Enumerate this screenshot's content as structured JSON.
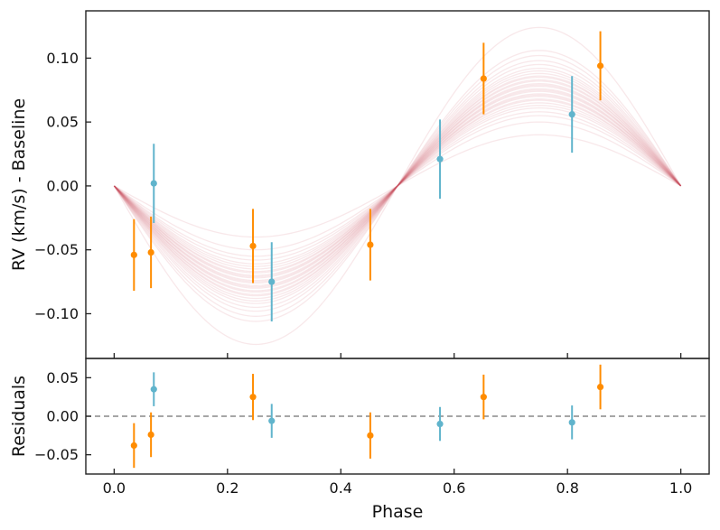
{
  "chart_data": [
    {
      "type": "scatter",
      "panel": "top",
      "ylabel": "RV (km/s) - Baseline",
      "xlim": [
        -0.05,
        1.05
      ],
      "ylim": [
        -0.135,
        0.137
      ],
      "yticks": [
        -0.1,
        -0.05,
        0.0,
        0.05,
        0.1
      ],
      "ytick_labels": [
        "−0.10",
        "−0.05",
        "0.00",
        "0.05",
        "0.10"
      ],
      "model_curves": {
        "form": "-K*sin(2*pi*phase)",
        "color": "#c8505a",
        "amplitudes": [
          0.04,
          0.05,
          0.055,
          0.058,
          0.061,
          0.063,
          0.065,
          0.067,
          0.068,
          0.07,
          0.071,
          0.072,
          0.074,
          0.075,
          0.076,
          0.078,
          0.079,
          0.08,
          0.082,
          0.083,
          0.085,
          0.086,
          0.088,
          0.09,
          0.092,
          0.095,
          0.098,
          0.102,
          0.106,
          0.124
        ]
      },
      "series": [
        {
          "color": "#ff8c00",
          "points": [
            {
              "x": 0.035,
              "y": -0.054,
              "err": 0.028
            },
            {
              "x": 0.065,
              "y": -0.052,
              "err": 0.028
            },
            {
              "x": 0.245,
              "y": -0.047,
              "err": 0.029
            },
            {
              "x": 0.452,
              "y": -0.046,
              "err": 0.028
            },
            {
              "x": 0.652,
              "y": 0.084,
              "err": 0.028
            },
            {
              "x": 0.858,
              "y": 0.094,
              "err": 0.027
            }
          ]
        },
        {
          "color": "#60b4cc",
          "points": [
            {
              "x": 0.07,
              "y": 0.002,
              "err": 0.031
            },
            {
              "x": 0.278,
              "y": -0.075,
              "err": 0.031
            },
            {
              "x": 0.575,
              "y": 0.021,
              "err": 0.031
            },
            {
              "x": 0.808,
              "y": 0.056,
              "err": 0.03
            }
          ]
        }
      ]
    },
    {
      "type": "scatter",
      "panel": "bottom",
      "xlabel": "Phase",
      "ylabel": "Residuals",
      "xlim": [
        -0.05,
        1.05
      ],
      "ylim": [
        -0.075,
        0.075
      ],
      "xticks": [
        0.0,
        0.2,
        0.4,
        0.6,
        0.8,
        1.0
      ],
      "xtick_labels": [
        "0.0",
        "0.2",
        "0.4",
        "0.6",
        "0.8",
        "1.0"
      ],
      "yticks": [
        -0.05,
        0.0,
        0.05
      ],
      "ytick_labels": [
        "−0.05",
        "0.00",
        "0.05"
      ],
      "zero_line": {
        "y": 0,
        "style": "dashed",
        "color": "#888888"
      },
      "series": [
        {
          "color": "#ff8c00",
          "points": [
            {
              "x": 0.035,
              "y": -0.038,
              "err": 0.029
            },
            {
              "x": 0.065,
              "y": -0.024,
              "err": 0.029
            },
            {
              "x": 0.245,
              "y": 0.025,
              "err": 0.03
            },
            {
              "x": 0.452,
              "y": -0.025,
              "err": 0.03
            },
            {
              "x": 0.652,
              "y": 0.025,
              "err": 0.029
            },
            {
              "x": 0.858,
              "y": 0.038,
              "err": 0.029
            }
          ]
        },
        {
          "color": "#60b4cc",
          "points": [
            {
              "x": 0.07,
              "y": 0.035,
              "err": 0.022
            },
            {
              "x": 0.278,
              "y": -0.006,
              "err": 0.022
            },
            {
              "x": 0.575,
              "y": -0.01,
              "err": 0.022
            },
            {
              "x": 0.808,
              "y": -0.008,
              "err": 0.022
            }
          ]
        }
      ]
    }
  ]
}
